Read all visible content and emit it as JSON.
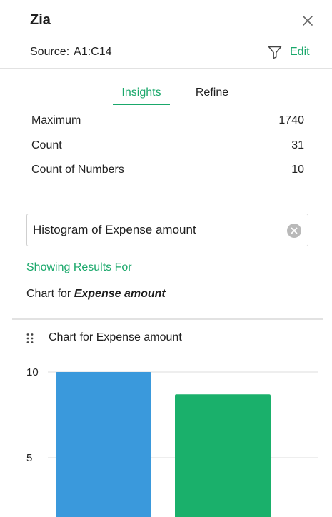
{
  "panel": {
    "title": "Zia",
    "source_label": "Source:",
    "source_value": "A1:C14",
    "edit_label": "Edit"
  },
  "tabs": [
    {
      "label": "Insights",
      "active": true
    },
    {
      "label": "Refine",
      "active": false
    }
  ],
  "stats": [
    {
      "label": "Maximum",
      "value": "1740"
    },
    {
      "label": "Count",
      "value": "31"
    },
    {
      "label": "Count of Numbers",
      "value": "10"
    }
  ],
  "search": {
    "value": "Histogram of Expense amount"
  },
  "results": {
    "showing_label": "Showing Results For",
    "chart_for_prefix": "Chart for",
    "chart_for_field": "Expense amount"
  },
  "chart_card": {
    "title": "Chart for Expense amount"
  },
  "colors": {
    "accent": "#1aa86b",
    "bar_blue": "#3a99dc",
    "bar_green": "#1ab06b"
  },
  "icons": {
    "close": "close-icon",
    "filter": "filter-icon",
    "clear": "clear-icon",
    "drag": "drag-handle-icon"
  },
  "chart_data": {
    "type": "bar",
    "title": "Chart for Expense amount",
    "categories": [
      "",
      ""
    ],
    "values": [
      10,
      8.7
    ],
    "colors": [
      "#3a99dc",
      "#1ab06b"
    ],
    "ylim": [
      0,
      10
    ],
    "yticks": [
      5,
      10
    ],
    "xlabel": "",
    "ylabel": "",
    "grid": true,
    "legend": "none"
  }
}
